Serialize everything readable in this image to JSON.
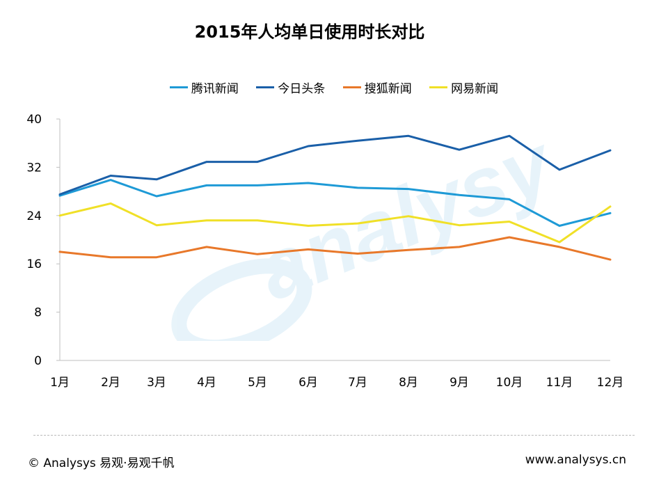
{
  "chart_data": {
    "type": "line",
    "title": "2015年人均单日使用时长对比",
    "categories": [
      "1月",
      "2月",
      "3月",
      "4月",
      "5月",
      "6月",
      "7月",
      "8月",
      "9月",
      "10月",
      "11月",
      "12月"
    ],
    "ylim": [
      0,
      40
    ],
    "yticks": [
      0,
      8,
      16,
      24,
      32,
      40
    ],
    "grid": false,
    "legend_position": "top",
    "series": [
      {
        "name": "腾讯新闻",
        "color": "#1e9ad6",
        "values": [
          27.3,
          29.9,
          27.2,
          29.0,
          29.0,
          29.4,
          28.6,
          28.4,
          27.4,
          26.7,
          22.3,
          24.4
        ]
      },
      {
        "name": "今日头条",
        "color": "#1a5fa8",
        "values": [
          27.5,
          30.6,
          30.0,
          32.9,
          32.9,
          35.5,
          36.4,
          37.2,
          34.9,
          37.2,
          31.6,
          34.8
        ]
      },
      {
        "name": "搜狐新闻",
        "color": "#e8782a",
        "values": [
          18.0,
          17.1,
          17.1,
          18.8,
          17.6,
          18.4,
          17.7,
          18.3,
          18.8,
          20.4,
          18.8,
          16.7
        ]
      },
      {
        "name": "网易新闻",
        "color": "#f0e027",
        "values": [
          24.0,
          26.0,
          22.4,
          23.2,
          23.2,
          22.3,
          22.7,
          23.9,
          22.4,
          23.0,
          19.6,
          25.5
        ]
      }
    ]
  },
  "footer": {
    "left": "© Analysys 易观·易观千帆",
    "right": "www.analysys.cn"
  },
  "watermark_text": "analysys"
}
